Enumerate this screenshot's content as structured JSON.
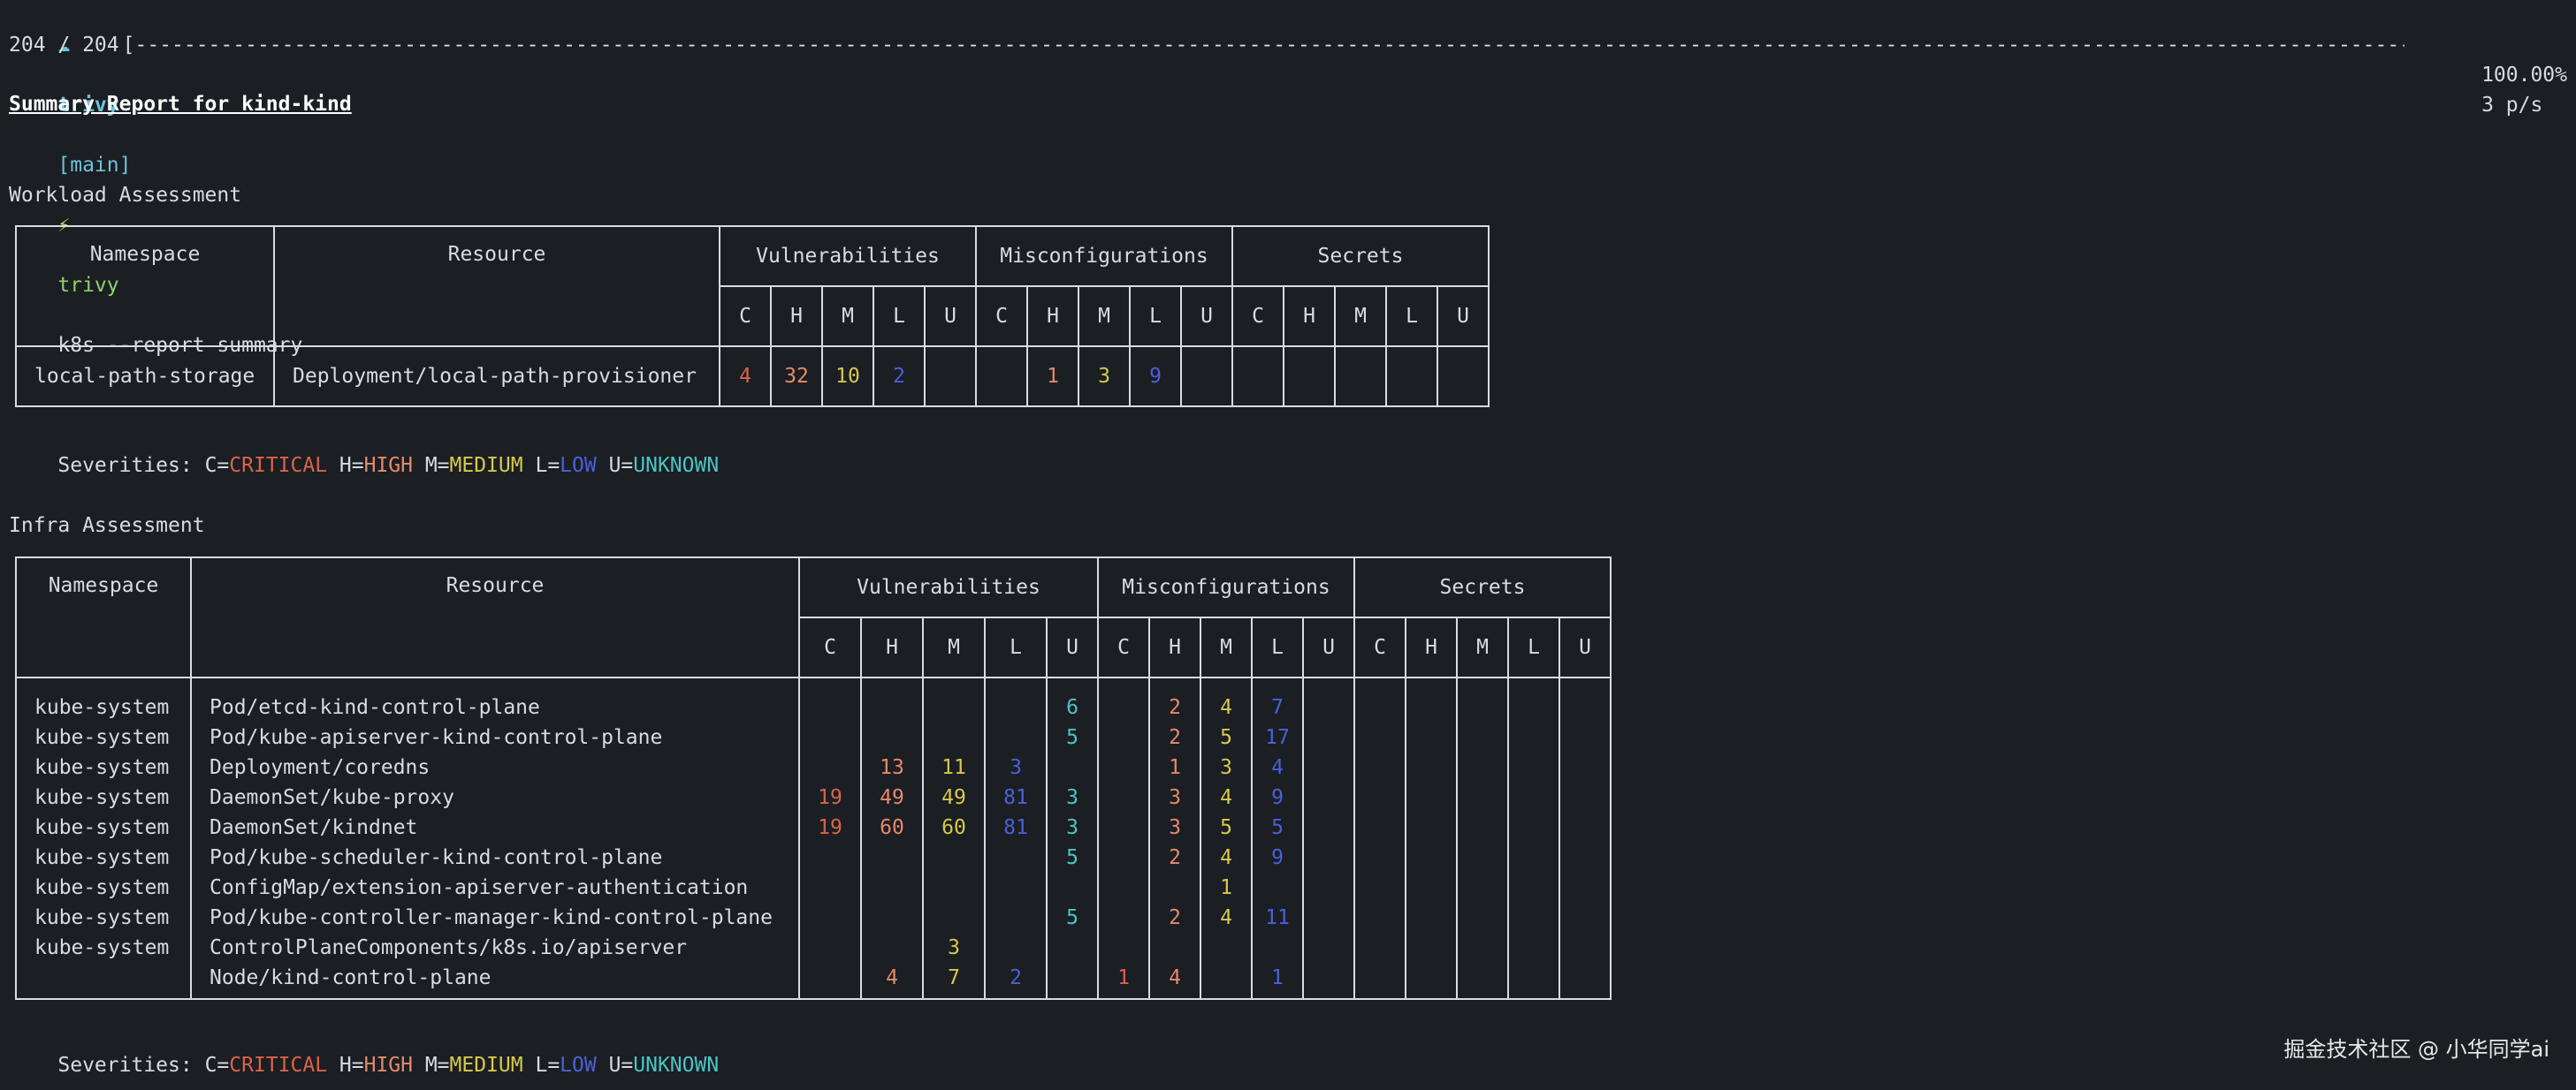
{
  "prompt": {
    "cloud": "☁",
    "dir": "trivy",
    "branch": "[main]",
    "bolt": "⚡",
    "bin": "trivy",
    "args": "k8s --report summary"
  },
  "progress": {
    "count": "204 / 204",
    "bar": "[------------------------------------------------------------------------------------------------------------------------------------------------------------------------------------------------------------------------------------------------------------------------------------------------------------------------------------------------------------------------------------]",
    "percent": "100.00%",
    "rate": "3 p/s",
    "fraction": 1.0
  },
  "report_title": "Summary Report for kind-kind",
  "workload": {
    "title": "Workload Assessment",
    "headers": {
      "namespace": "Namespace",
      "resource": "Resource",
      "vulnerabilities": "Vulnerabilities",
      "misconfigurations": "Misconfigurations",
      "secrets": "Secrets",
      "sev_letters": [
        "C",
        "H",
        "M",
        "L",
        "U"
      ]
    },
    "rows": [
      {
        "namespace": "local-path-storage",
        "resource": "Deployment/local-path-provisioner",
        "vuln": [
          "4",
          "32",
          "10",
          "2",
          ""
        ],
        "misconf": [
          "",
          "1",
          "3",
          "9",
          ""
        ],
        "secrets": [
          "",
          "",
          "",
          "",
          ""
        ]
      }
    ]
  },
  "severities_legend": {
    "prefix": "Severities: ",
    "c_key": "C=",
    "c_val": "CRITICAL",
    "h_key": " H=",
    "h_val": "HIGH",
    "m_key": " M=",
    "m_val": "MEDIUM",
    "l_key": " L=",
    "l_val": "LOW",
    "u_key": " U=",
    "u_val": "UNKNOWN"
  },
  "infra": {
    "title": "Infra Assessment",
    "headers": {
      "namespace": "Namespace",
      "resource": "Resource",
      "vulnerabilities": "Vulnerabilities",
      "misconfigurations": "Misconfigurations",
      "secrets": "Secrets"
    },
    "rows": [
      {
        "namespace": "kube-system",
        "resource": "Pod/etcd-kind-control-plane",
        "vuln": [
          "",
          "",
          "",
          "",
          "6"
        ],
        "misconf": [
          "",
          "2",
          "4",
          "7",
          ""
        ],
        "secrets": [
          "",
          "",
          "",
          "",
          ""
        ]
      },
      {
        "namespace": "kube-system",
        "resource": "Pod/kube-apiserver-kind-control-plane",
        "vuln": [
          "",
          "",
          "",
          "",
          "5"
        ],
        "misconf": [
          "",
          "2",
          "5",
          "17",
          ""
        ],
        "secrets": [
          "",
          "",
          "",
          "",
          ""
        ]
      },
      {
        "namespace": "kube-system",
        "resource": "Deployment/coredns",
        "vuln": [
          "",
          "13",
          "11",
          "3",
          ""
        ],
        "misconf": [
          "",
          "1",
          "3",
          "4",
          ""
        ],
        "secrets": [
          "",
          "",
          "",
          "",
          ""
        ]
      },
      {
        "namespace": "kube-system",
        "resource": "DaemonSet/kube-proxy",
        "vuln": [
          "19",
          "49",
          "49",
          "81",
          "3"
        ],
        "misconf": [
          "",
          "3",
          "4",
          "9",
          ""
        ],
        "secrets": [
          "",
          "",
          "",
          "",
          ""
        ]
      },
      {
        "namespace": "kube-system",
        "resource": "DaemonSet/kindnet",
        "vuln": [
          "19",
          "60",
          "60",
          "81",
          "3"
        ],
        "misconf": [
          "",
          "3",
          "5",
          "5",
          ""
        ],
        "secrets": [
          "",
          "",
          "",
          "",
          ""
        ]
      },
      {
        "namespace": "kube-system",
        "resource": "Pod/kube-scheduler-kind-control-plane",
        "vuln": [
          "",
          "",
          "",
          "",
          "5"
        ],
        "misconf": [
          "",
          "2",
          "4",
          "9",
          ""
        ],
        "secrets": [
          "",
          "",
          "",
          "",
          ""
        ]
      },
      {
        "namespace": "kube-system",
        "resource": "ConfigMap/extension-apiserver-authentication",
        "vuln": [
          "",
          "",
          "",
          "",
          ""
        ],
        "misconf": [
          "",
          "",
          "1",
          "",
          ""
        ],
        "secrets": [
          "",
          "",
          "",
          "",
          ""
        ]
      },
      {
        "namespace": "kube-system",
        "resource": "Pod/kube-controller-manager-kind-control-plane",
        "vuln": [
          "",
          "",
          "",
          "",
          "5"
        ],
        "misconf": [
          "",
          "2",
          "4",
          "11",
          ""
        ],
        "secrets": [
          "",
          "",
          "",
          "",
          ""
        ]
      },
      {
        "namespace": "kube-system",
        "resource": "ControlPlaneComponents/k8s.io/apiserver",
        "vuln": [
          "",
          "",
          "3",
          "",
          ""
        ],
        "misconf": [
          "",
          "",
          "",
          "",
          ""
        ],
        "secrets": [
          "",
          "",
          "",
          "",
          ""
        ]
      },
      {
        "namespace": "",
        "resource": "Node/kind-control-plane",
        "vuln": [
          "",
          "4",
          "7",
          "2",
          ""
        ],
        "misconf": [
          "1",
          "4",
          "",
          "1",
          ""
        ],
        "secrets": [
          "",
          "",
          "",
          "",
          ""
        ]
      }
    ]
  },
  "colors": {
    "critical": "#d9634a",
    "high": "#e58a6a",
    "medium": "#d8c94a",
    "low": "#4a60d9",
    "unknown": "#4ac4c4",
    "background": "#1b1e23",
    "text": "#d8dbe0"
  },
  "watermark": "掘金技术社区 @ 小华同学ai"
}
